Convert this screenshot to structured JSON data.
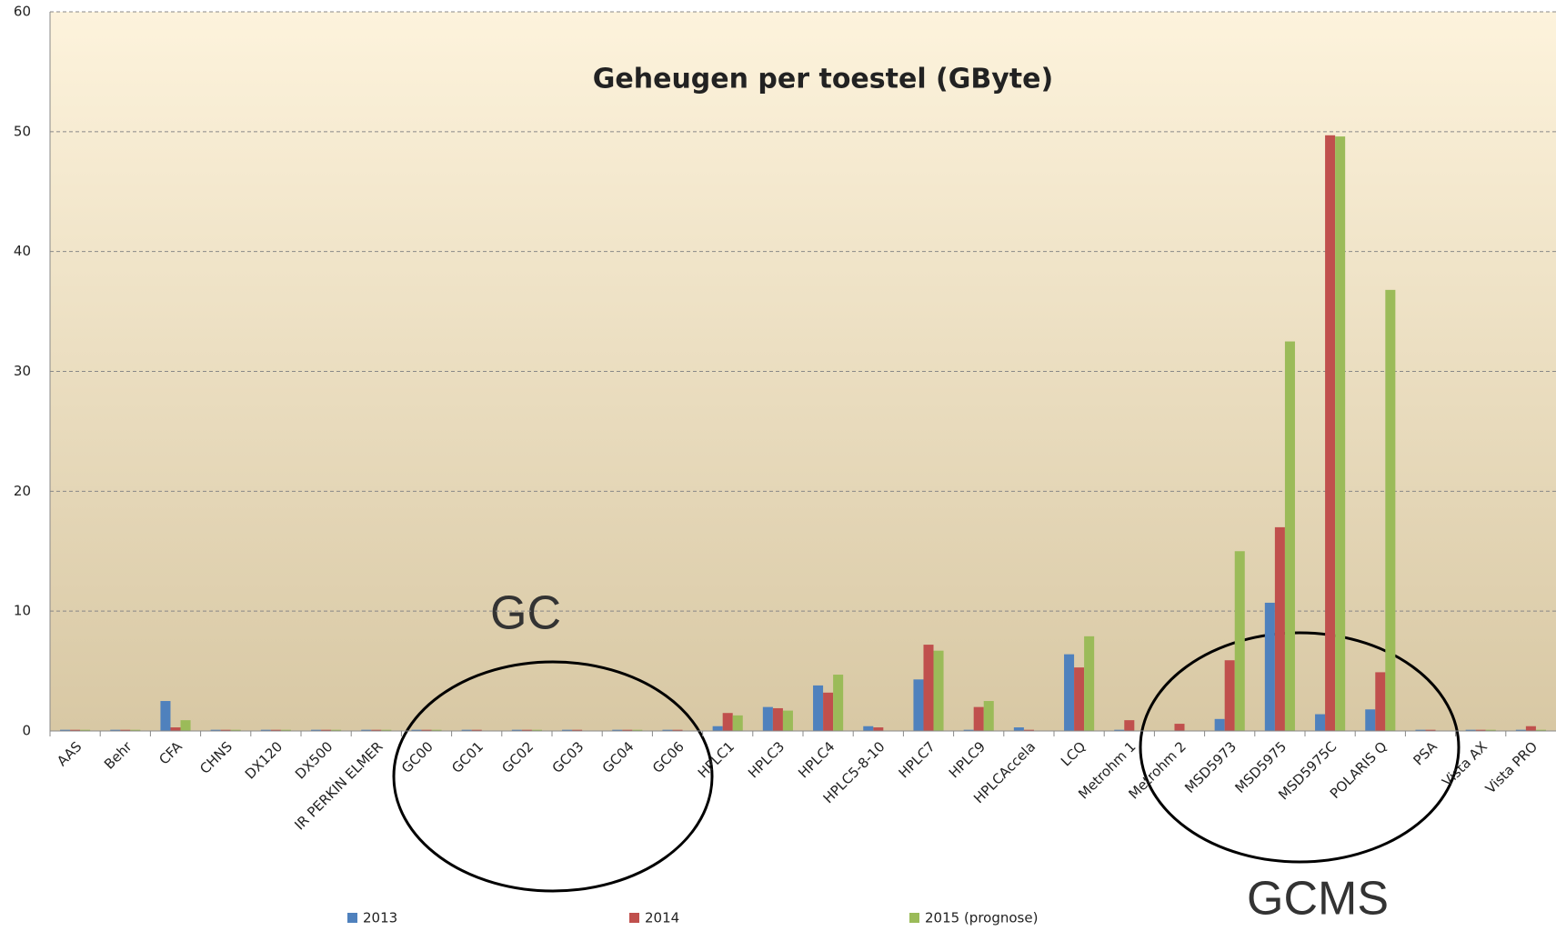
{
  "chart_data": {
    "type": "bar",
    "title": "Geheugen per toestel (GByte)",
    "categories": [
      "AAS",
      "Behr",
      "CFA",
      "CHNS",
      "DX120",
      "DX500",
      "IR PERKIN ELMER",
      "GC00",
      "GC01",
      "GC02",
      "GC03",
      "GC04",
      "GC06",
      "HPLC1",
      "HPLC3",
      "HPLC4",
      "HPLC5-8-10",
      "HPLC7",
      "HPLC9",
      "HPLCAccela",
      "LCQ",
      "Metrohm 1",
      "Metrohm 2",
      "MSD5973",
      "MSD5975",
      "MSD5975C",
      "POLARIS Q",
      "PSA",
      "Vista AX",
      "Vista PRO"
    ],
    "series": [
      {
        "name": "2013",
        "color": "#4f81bd",
        "values": [
          0.1,
          0.1,
          2.5,
          0.1,
          0.1,
          0.1,
          0.1,
          0.1,
          0.1,
          0.1,
          0.1,
          0.1,
          0.1,
          0.4,
          2.0,
          3.8,
          0.4,
          4.3,
          0.1,
          0.3,
          6.4,
          0.1,
          0,
          1.0,
          10.7,
          1.4,
          1.8,
          0.1,
          0.1,
          0.1
        ]
      },
      {
        "name": "2014",
        "color": "#c0504d",
        "values": [
          0.1,
          0.1,
          0.3,
          0.1,
          0.1,
          0.1,
          0.1,
          0.1,
          0.1,
          0.1,
          0.1,
          0.1,
          0.1,
          1.5,
          1.9,
          3.2,
          0.3,
          7.2,
          2.0,
          0.1,
          5.3,
          0.9,
          0.6,
          5.9,
          17.0,
          49.7,
          4.9,
          0.1,
          0.1,
          0.4
        ]
      },
      {
        "name": "2015 (prognose)",
        "color": "#9bbb59",
        "values": [
          0.1,
          0.1,
          0.9,
          0.1,
          0.1,
          0.1,
          0.1,
          0.1,
          0,
          0.1,
          0,
          0.1,
          0,
          1.3,
          1.7,
          4.7,
          0,
          6.7,
          2.5,
          0,
          7.9,
          0,
          0,
          15.0,
          32.5,
          49.6,
          36.8,
          0,
          0.1,
          0.1
        ]
      }
    ],
    "ylim": [
      0,
      60
    ],
    "yticks": [
      0,
      10,
      20,
      30,
      40,
      50,
      60
    ],
    "grid": true,
    "legend": "bottom",
    "annotations": [
      {
        "text": "GC"
      },
      {
        "text": "GCMS"
      }
    ]
  }
}
